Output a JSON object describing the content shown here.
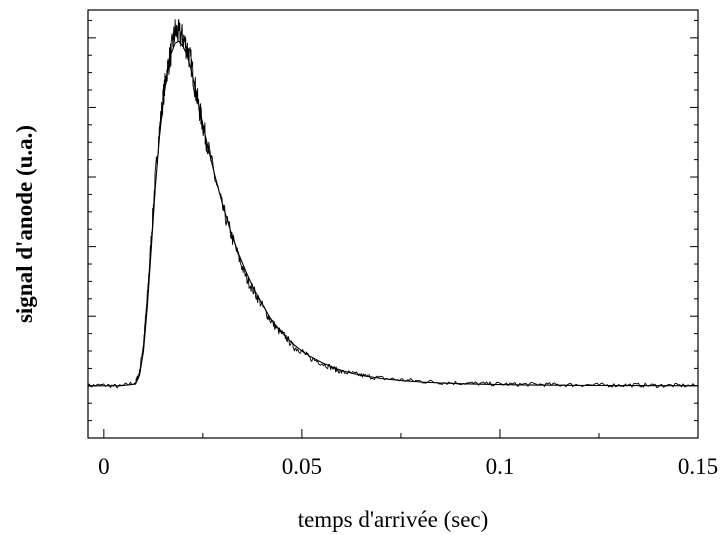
{
  "chart_data": {
    "type": "line",
    "title": "",
    "xlabel": "temps d'arrivée (sec)",
    "ylabel": "signal d'anode (u.a.)",
    "xlim": [
      -0.004,
      0.15
    ],
    "ylim": [
      -0.15,
      1.08
    ],
    "xticks": [
      0,
      0.05,
      0.1,
      0.15
    ],
    "xtick_labels": [
      "0",
      "0.05",
      "0.1",
      "0.15"
    ],
    "yticks_labeled": false,
    "grid": false,
    "legend": "none",
    "series": [
      {
        "style": "noisy-measured",
        "x": [
          -0.004,
          0.0,
          0.004,
          0.008,
          0.009,
          0.01,
          0.011,
          0.012,
          0.013,
          0.014,
          0.015,
          0.016,
          0.017,
          0.018,
          0.019,
          0.02,
          0.021,
          0.022,
          0.023,
          0.024,
          0.025,
          0.026,
          0.028,
          0.03,
          0.032,
          0.034,
          0.036,
          0.038,
          0.04,
          0.042,
          0.044,
          0.046,
          0.048,
          0.05,
          0.052,
          0.055,
          0.058,
          0.06,
          0.063,
          0.066,
          0.07,
          0.075,
          0.08,
          0.085,
          0.09,
          0.095,
          0.1,
          0.105,
          0.11,
          0.115,
          0.12,
          0.125,
          0.13,
          0.135,
          0.14,
          0.145,
          0.15
        ],
        "y": [
          0.0,
          0.002,
          -0.002,
          0.01,
          0.04,
          0.12,
          0.26,
          0.43,
          0.6,
          0.73,
          0.83,
          0.91,
          0.96,
          1.02,
          1.01,
          1.0,
          0.97,
          0.93,
          0.86,
          0.8,
          0.75,
          0.7,
          0.6,
          0.51,
          0.44,
          0.37,
          0.31,
          0.27,
          0.23,
          0.19,
          0.16,
          0.14,
          0.11,
          0.1,
          0.08,
          0.065,
          0.05,
          0.04,
          0.035,
          0.028,
          0.022,
          0.017,
          0.013,
          0.01,
          0.008,
          0.006,
          0.005,
          0.004,
          0.004,
          0.003,
          0.003,
          0.002,
          0.002,
          0.002,
          0.001,
          0.001,
          0.0
        ]
      },
      {
        "style": "smooth-fit",
        "x": [
          -0.004,
          0.0,
          0.004,
          0.008,
          0.009,
          0.01,
          0.011,
          0.012,
          0.013,
          0.014,
          0.015,
          0.016,
          0.017,
          0.018,
          0.019,
          0.02,
          0.021,
          0.022,
          0.023,
          0.024,
          0.025,
          0.026,
          0.028,
          0.03,
          0.032,
          0.034,
          0.036,
          0.038,
          0.04,
          0.042,
          0.044,
          0.046,
          0.048,
          0.05,
          0.052,
          0.055,
          0.058,
          0.06,
          0.063,
          0.066,
          0.07,
          0.075,
          0.08,
          0.085,
          0.09,
          0.095,
          0.1,
          0.105,
          0.11,
          0.115,
          0.12,
          0.125,
          0.13,
          0.135,
          0.14,
          0.145,
          0.15
        ],
        "y": [
          0.0,
          0.0,
          0.0,
          0.005,
          0.03,
          0.1,
          0.23,
          0.4,
          0.57,
          0.71,
          0.82,
          0.9,
          0.955,
          0.985,
          0.99,
          0.975,
          0.95,
          0.91,
          0.86,
          0.805,
          0.75,
          0.7,
          0.605,
          0.52,
          0.445,
          0.38,
          0.325,
          0.275,
          0.235,
          0.195,
          0.165,
          0.14,
          0.118,
          0.1,
          0.085,
          0.067,
          0.052,
          0.044,
          0.035,
          0.028,
          0.021,
          0.015,
          0.011,
          0.008,
          0.006,
          0.0045,
          0.0035,
          0.0027,
          0.002,
          0.0016,
          0.0012,
          0.0009,
          0.0007,
          0.0005,
          0.0004,
          0.0003,
          0.0002
        ]
      }
    ]
  }
}
